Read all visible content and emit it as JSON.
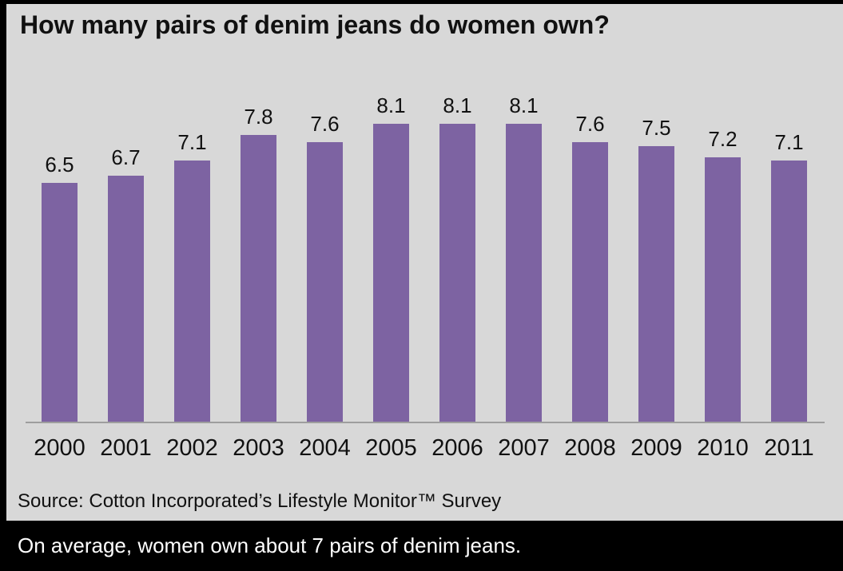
{
  "title": "How many pairs of denim jeans do women own?",
  "source": "Source: Cotton Incorporated’s Lifestyle Monitor™ Survey",
  "footer": "On average, women own about 7 pairs of denim jeans.",
  "colors": {
    "bar": "#7D63A2",
    "panel_background": "#D8D8D8",
    "footer_background": "#000000",
    "footer_text": "#FFFFFF",
    "axis_line": "#9E9E9E",
    "text": "#111111"
  },
  "chart_data": {
    "type": "bar",
    "title": "How many pairs of denim jeans do women own?",
    "categories": [
      "2000",
      "2001",
      "2002",
      "2003",
      "2004",
      "2005",
      "2006",
      "2007",
      "2008",
      "2009",
      "2010",
      "2011"
    ],
    "values": [
      6.5,
      6.7,
      7.1,
      7.8,
      7.6,
      8.1,
      8.1,
      8.1,
      7.6,
      7.5,
      7.2,
      7.1
    ],
    "xlabel": "",
    "ylabel": "",
    "ylim": [
      0,
      9
    ],
    "grid": false,
    "legend": false,
    "data_labels": true,
    "bar_color": "#7D63A2",
    "background": "#D8D8D8"
  }
}
